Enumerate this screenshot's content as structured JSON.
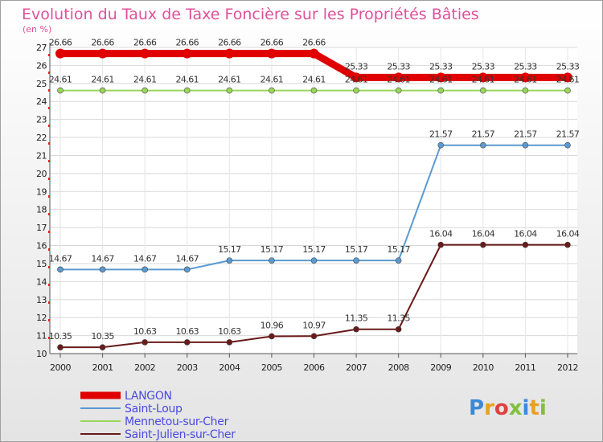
{
  "chart_data": {
    "type": "line",
    "title": "Evolution du Taux de Taxe Foncière sur les Propriétés Bâties",
    "subtitle": "(en %)",
    "x": [
      "2000",
      "2001",
      "2002",
      "2003",
      "2004",
      "2005",
      "2006",
      "2007",
      "2008",
      "2009",
      "2010",
      "2011",
      "2012"
    ],
    "ylim": [
      10,
      27
    ],
    "yticks": [
      10,
      11,
      12,
      13,
      14,
      15,
      16,
      17,
      18,
      19,
      20,
      21,
      22,
      23,
      24,
      25,
      26,
      27
    ],
    "series": [
      {
        "name": "LANGON",
        "color": "#e00000",
        "values": [
          26.66,
          26.66,
          26.66,
          26.66,
          26.66,
          26.66,
          26.66,
          25.33,
          25.33,
          25.33,
          25.33,
          25.33,
          25.33
        ],
        "labels": [
          "26.66",
          "26.66",
          "26.66",
          "26.66",
          "26.66",
          "26.66",
          "26.66",
          "25.33",
          "25.33",
          "25.33",
          "25.33",
          "25.33",
          "25.33"
        ]
      },
      {
        "name": "Saint-Loup",
        "color": "#5a9ad0",
        "values": [
          14.67,
          14.67,
          14.67,
          14.67,
          15.17,
          15.17,
          15.17,
          15.17,
          15.17,
          21.57,
          21.57,
          21.57,
          21.57
        ],
        "labels": [
          "14.67",
          "14.67",
          "14.67",
          "14.67",
          "15.17",
          "15.17",
          "15.17",
          "15.17",
          "15.17",
          "21.57",
          "21.57",
          "21.57",
          "21.57"
        ]
      },
      {
        "name": "Mennetou-sur-Cher",
        "color": "#9ad65a",
        "values": [
          24.61,
          24.61,
          24.61,
          24.61,
          24.61,
          24.61,
          24.61,
          24.61,
          24.61,
          24.61,
          24.61,
          24.61,
          24.61
        ],
        "labels": [
          "24.61",
          "24.61",
          "24.61",
          "24.61",
          "24.61",
          "24.61",
          "24.61",
          "24.61",
          "24.61",
          "24.61",
          "24.61",
          "24.61",
          "24.61"
        ]
      },
      {
        "name": "Saint-Julien-sur-Cher",
        "color": "#6a1a1a",
        "values": [
          10.35,
          10.35,
          10.63,
          10.63,
          10.63,
          10.96,
          10.97,
          11.35,
          11.35,
          16.04,
          16.04,
          16.04,
          16.04
        ],
        "labels": [
          "10.35",
          "10.35",
          "10.63",
          "10.63",
          "10.63",
          "10.96",
          "10.97",
          "11.35",
          "11.35",
          "16.04",
          "16.04",
          "16.04",
          "16.04"
        ]
      }
    ],
    "logo": "Proxiti"
  }
}
